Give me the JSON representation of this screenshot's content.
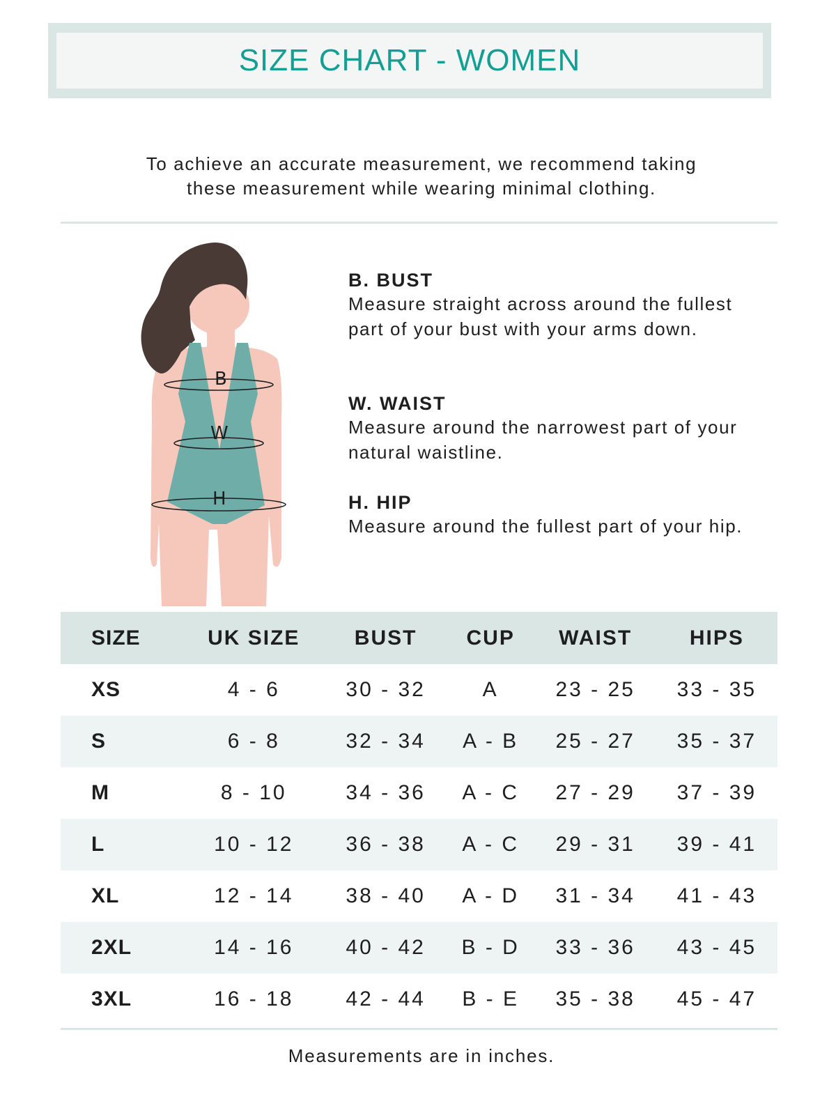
{
  "header": {
    "title": "SIZE CHART - WOMEN"
  },
  "intro": {
    "line1": "To achieve an accurate measurement, we recommend taking",
    "line2": "these measurement while wearing minimal clothing."
  },
  "figure": {
    "labels": {
      "bust": "B",
      "waist": "W",
      "hip": "H"
    },
    "colors": {
      "hair": "#4a3a36",
      "skin": "#f5c8bb",
      "swimsuit": "#6fada9"
    }
  },
  "guide": [
    {
      "heading": "B. BUST",
      "text": "Measure straight across around the fullest part of your bust with your arms down."
    },
    {
      "heading": "W. WAIST",
      "text": "Measure around the narrowest part of your natural waistline."
    },
    {
      "heading": "H. HIP",
      "text": "Measure around the fullest part of your hip."
    }
  ],
  "table": {
    "headers": [
      "SIZE",
      "UK SIZE",
      "BUST",
      "CUP",
      "WAIST",
      "HIPS"
    ],
    "rows": [
      [
        "XS",
        "4 - 6",
        "30 - 32",
        "A",
        "23 - 25",
        "33 - 35"
      ],
      [
        "S",
        "6 - 8",
        "32 - 34",
        "A - B",
        "25 - 27",
        "35 - 37"
      ],
      [
        "M",
        "8 - 10",
        "34 - 36",
        "A - C",
        "27 - 29",
        "37 - 39"
      ],
      [
        "L",
        "10 - 12",
        "36 - 38",
        "A - C",
        "29 - 31",
        "39 - 41"
      ],
      [
        "XL",
        "12 - 14",
        "38 - 40",
        "A - D",
        "31 - 34",
        "41 - 43"
      ],
      [
        "2XL",
        "14 - 16",
        "40 - 42",
        "B - D",
        "33 - 36",
        "43 - 45"
      ],
      [
        "3XL",
        "16 - 18",
        "42 - 44",
        "B - E",
        "35 - 38",
        "45 - 47"
      ]
    ]
  },
  "footer": {
    "note": "Measurements are in inches."
  },
  "colors": {
    "accent": "#159e94",
    "header_bg": "#d9e6e3",
    "stripe": "#eef4f3"
  }
}
